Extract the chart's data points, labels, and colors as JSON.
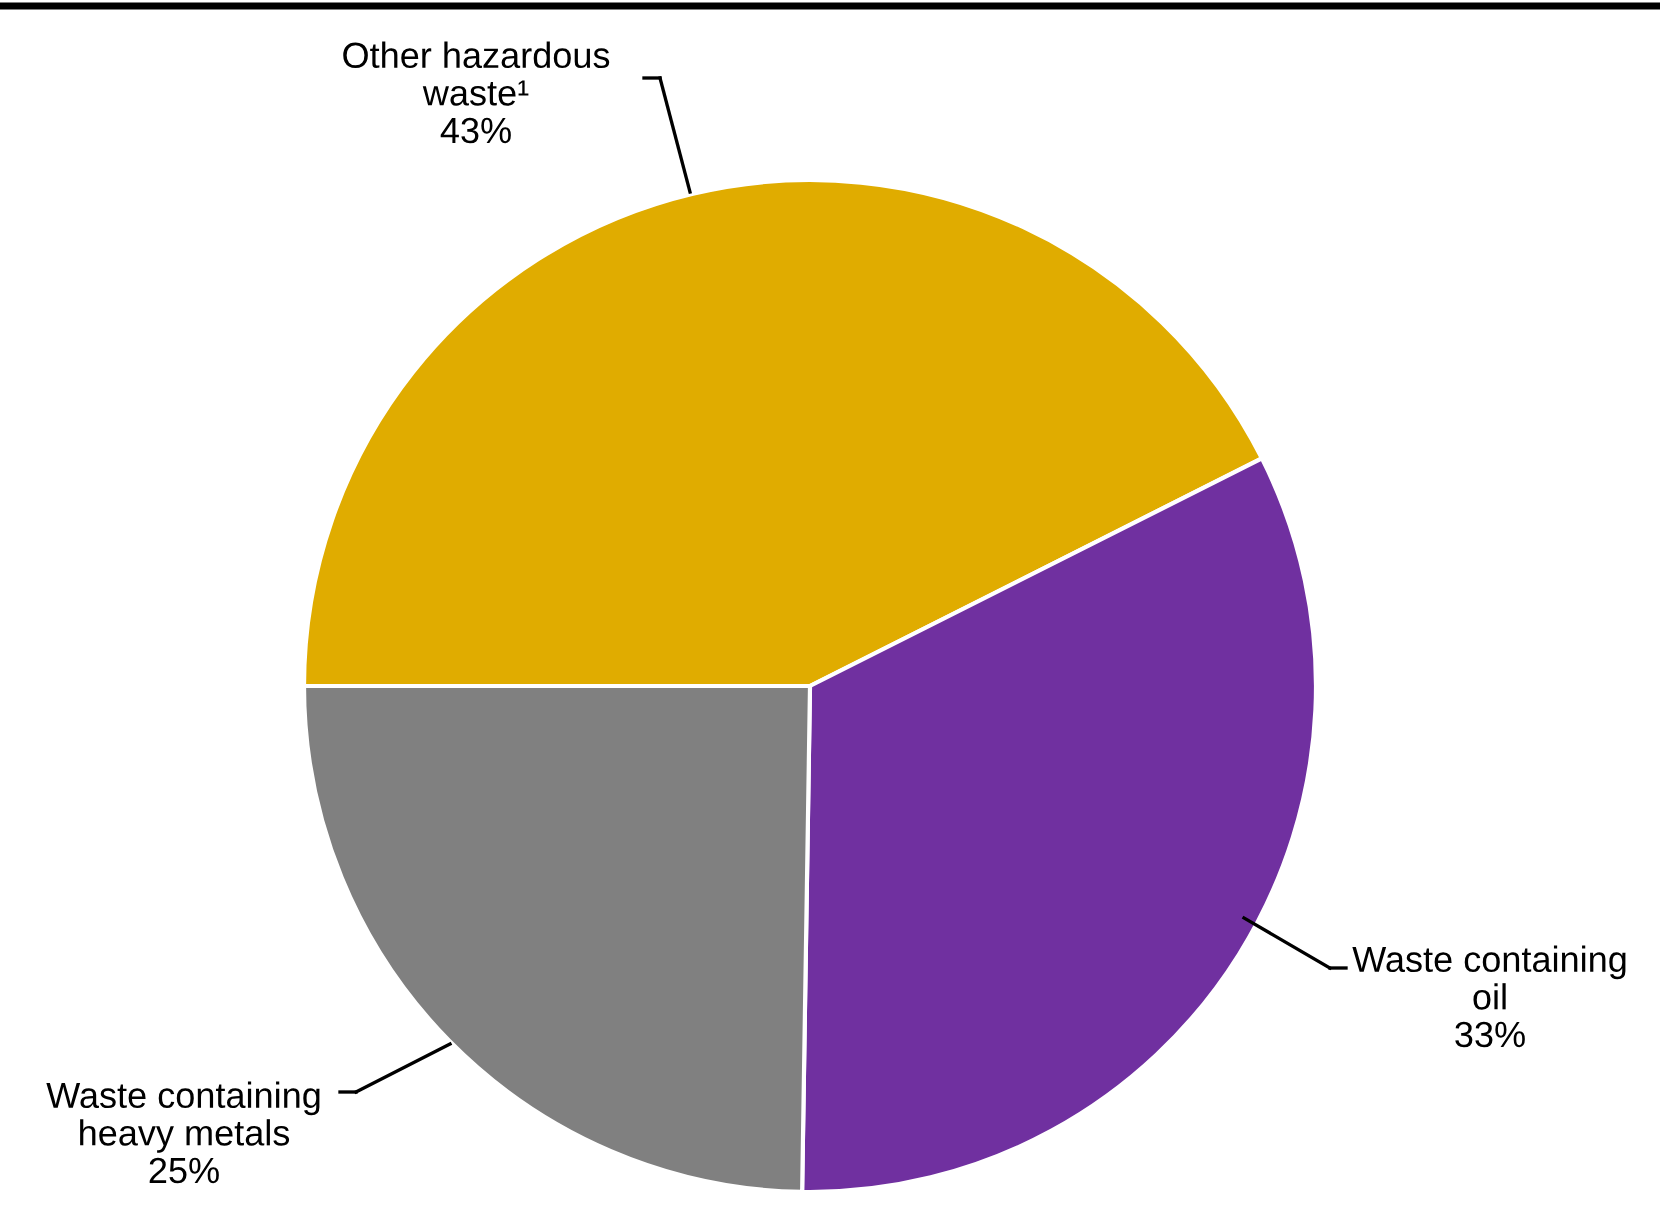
{
  "chart_data": {
    "type": "pie",
    "categories": [
      "Other hazardous waste¹\n43%",
      "Waste containing\noil\n33%",
      "Waste containing\nheavy metals\n25%"
    ],
    "values": [
      43,
      33,
      25
    ],
    "colors": [
      "#e0ac00",
      "#7030a0",
      "#808080"
    ]
  }
}
